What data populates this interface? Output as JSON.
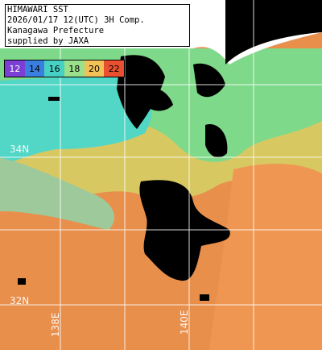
{
  "header": {
    "line1": "HIMAWARI SST",
    "line2": "2026/01/17 12(UTC) 3H Comp.",
    "line3": "Kanagawa Prefecture",
    "line4": "supplied by JAXA"
  },
  "legend": [
    {
      "label": "12",
      "color": "#7b3fd6"
    },
    {
      "label": "14",
      "color": "#3a7fe0"
    },
    {
      "label": "16",
      "color": "#47d1c4"
    },
    {
      "label": "18",
      "color": "#9be08a"
    },
    {
      "label": "20",
      "color": "#f2c257"
    },
    {
      "label": "22",
      "color": "#e8502f"
    }
  ],
  "grid": {
    "lat_labels": [
      "34N",
      "32N"
    ],
    "lon_labels": [
      "138E",
      "140E"
    ]
  },
  "colors": {
    "ocean_warm": "#e98f4c",
    "ocean_mid": "#c9d870",
    "ocean_cool": "#58d6c2",
    "land": "#000000",
    "no_data": "#ffffff"
  }
}
